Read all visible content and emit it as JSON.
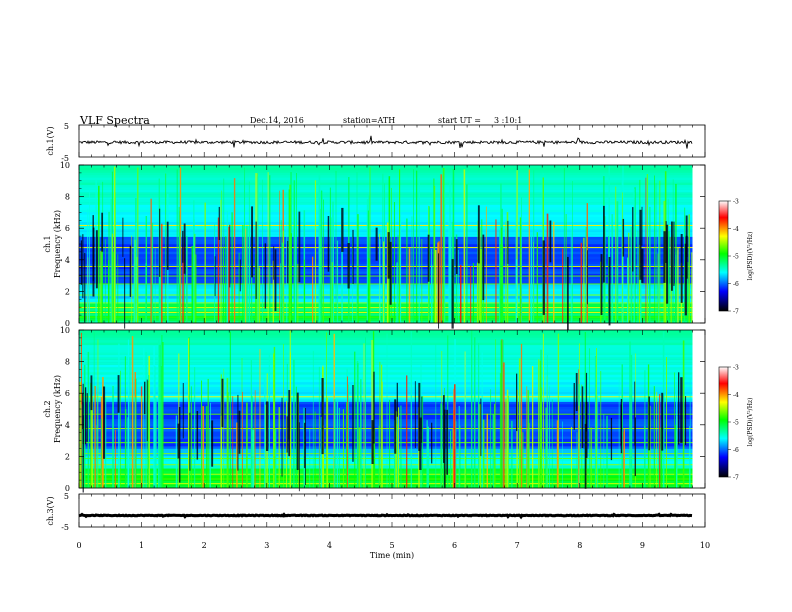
{
  "header": {
    "title": "VLF Spectra",
    "date": "Dec.14, 2016",
    "station": "station=ATH",
    "start_label": "start UT =",
    "start_time": "3 :10:1"
  },
  "chart_data": [
    {
      "type": "line",
      "panel": "ch1-waveform",
      "ylabel": "ch.1(V)",
      "yticks": [
        "5",
        "-5"
      ],
      "ylim": [
        -5,
        5
      ],
      "xlim": [
        0,
        10
      ],
      "baseline_v": -0.4,
      "noise_amplitude_v": 0.9,
      "x_end_min": 9.8
    },
    {
      "type": "heatmap",
      "panel": "ch1-spectrogram",
      "ylabel": "ch.1\nFrequency (kHz)",
      "ylabel_line1": "ch.1",
      "ylabel_line2": "Frequency (kHz)",
      "yticks": [
        "0",
        "2",
        "4",
        "6",
        "8",
        "10"
      ],
      "ylim": [
        0,
        10
      ],
      "xlim": [
        0,
        10
      ],
      "x_end_min": 9.8,
      "colorbar": {
        "label": "log(PSD)(V²/Hz)",
        "ticks": [
          "-3",
          "-4",
          "-5",
          "-6",
          "-7"
        ],
        "range": [
          -7,
          -3
        ],
        "colors": [
          "#000000",
          "#0000ff",
          "#00ffff",
          "#00ff00",
          "#ffff00",
          "#ff0000",
          "#ffffff"
        ]
      }
    },
    {
      "type": "heatmap",
      "panel": "ch2-spectrogram",
      "ylabel": "ch.2\nFrequency (kHz)",
      "ylabel_line1": "ch.2",
      "ylabel_line2": "Frequency (kHz)",
      "yticks": [
        "0",
        "2",
        "4",
        "6",
        "8",
        "10"
      ],
      "ylim": [
        0,
        10
      ],
      "xlim": [
        0,
        10
      ],
      "x_end_min": 9.8,
      "colorbar": {
        "label": "log(PSD)(V²/Hz)",
        "ticks": [
          "-3",
          "-4",
          "-5",
          "-6",
          "-7"
        ],
        "range": [
          -7,
          -3
        ],
        "colors": [
          "#000000",
          "#0000ff",
          "#00ffff",
          "#00ff00",
          "#ffff00",
          "#ff0000",
          "#ffffff"
        ]
      }
    },
    {
      "type": "line",
      "panel": "ch3-waveform",
      "ylabel": "ch.3(V)",
      "yticks": [
        "5",
        "-5"
      ],
      "ylim": [
        -5,
        5
      ],
      "xlim": [
        0,
        10
      ],
      "baseline_v": -1.5,
      "noise_amplitude_v": 0.2,
      "x_end_min": 9.8
    }
  ],
  "xaxis": {
    "label": "Time (min)",
    "ticks": [
      "0",
      "1",
      "2",
      "3",
      "4",
      "5",
      "6",
      "7",
      "8",
      "9",
      "10"
    ]
  }
}
